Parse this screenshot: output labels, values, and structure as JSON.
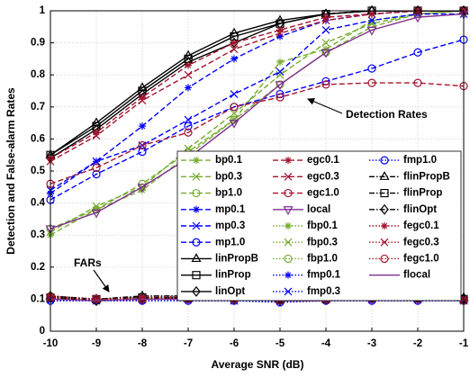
{
  "chart_data": {
    "type": "line",
    "xlabel": "Average SNR (dB)",
    "ylabel": "Detection and False-alarm Rates",
    "x": [
      -10,
      -9,
      -8,
      -7,
      -6,
      -5,
      -4,
      -3,
      -2,
      -1
    ],
    "xlim": [
      -10,
      -1
    ],
    "xticks": [
      -10,
      -9,
      -8,
      -7,
      -6,
      -5,
      -4,
      -3,
      -2,
      -1
    ],
    "ylim": [
      0,
      1
    ],
    "yticks": [
      0,
      0.1,
      0.2,
      0.3,
      0.4,
      0.5,
      0.6,
      0.7,
      0.8,
      0.9,
      1
    ],
    "grid": true,
    "legend": "lower-right",
    "annotations": [
      {
        "text": "Detection Rates"
      },
      {
        "text": "FARs"
      }
    ],
    "series": [
      {
        "name": "bp0.1",
        "color": "#77ac30",
        "dash": "dashed",
        "marker": "asterisk",
        "values": [
          0.3,
          0.38,
          0.44,
          0.55,
          0.66,
          0.84,
          0.88,
          0.97,
          0.99,
          1.0
        ]
      },
      {
        "name": "bp0.3",
        "color": "#77ac30",
        "dash": "dashed",
        "marker": "x",
        "values": [
          0.31,
          0.39,
          0.45,
          0.57,
          0.68,
          0.8,
          0.9,
          0.96,
          0.99,
          1.0
        ]
      },
      {
        "name": "bp1.0",
        "color": "#77ac30",
        "dash": "dashed",
        "marker": "circle",
        "values": [
          0.32,
          0.38,
          0.46,
          0.56,
          0.66,
          0.77,
          0.87,
          0.95,
          0.99,
          1.0
        ]
      },
      {
        "name": "mp0.1",
        "color": "#0000ff",
        "dash": "dashed",
        "marker": "asterisk",
        "values": [
          0.43,
          0.53,
          0.64,
          0.76,
          0.85,
          0.92,
          0.97,
          0.99,
          1.0,
          1.0
        ]
      },
      {
        "name": "mp0.3",
        "color": "#0000ff",
        "dash": "dashed",
        "marker": "x",
        "values": [
          0.44,
          0.53,
          0.58,
          0.66,
          0.74,
          0.81,
          0.94,
          0.97,
          0.99,
          0.99
        ]
      },
      {
        "name": "mp1.0",
        "color": "#0000ff",
        "dash": "dashed",
        "marker": "circle",
        "values": [
          0.41,
          0.49,
          0.56,
          0.64,
          0.7,
          0.74,
          0.78,
          0.82,
          0.87,
          0.91
        ]
      },
      {
        "name": "linPropB",
        "color": "#000000",
        "dash": "solid",
        "marker": "triangle",
        "values": [
          0.55,
          0.65,
          0.76,
          0.86,
          0.93,
          0.97,
          0.99,
          1.0,
          1.0,
          1.0
        ]
      },
      {
        "name": "linProp",
        "color": "#000000",
        "dash": "solid",
        "marker": "square",
        "values": [
          0.55,
          0.64,
          0.75,
          0.85,
          0.92,
          0.96,
          0.99,
          1.0,
          1.0,
          1.0
        ]
      },
      {
        "name": "linOpt",
        "color": "#000000",
        "dash": "solid",
        "marker": "diamond",
        "values": [
          0.54,
          0.63,
          0.74,
          0.84,
          0.9,
          0.96,
          0.99,
          1.0,
          1.0,
          1.0
        ]
      },
      {
        "name": "egc0.1",
        "color": "#a2142f",
        "dash": "dashed",
        "marker": "asterisk",
        "values": [
          0.54,
          0.62,
          0.73,
          0.83,
          0.9,
          0.94,
          0.98,
          0.99,
          1.0,
          1.0
        ]
      },
      {
        "name": "egc0.3",
        "color": "#a2142f",
        "dash": "dashed",
        "marker": "x",
        "values": [
          0.53,
          0.61,
          0.72,
          0.8,
          0.88,
          0.93,
          0.97,
          0.99,
          1.0,
          1.0
        ]
      },
      {
        "name": "egc1.0",
        "color": "#a2142f",
        "dash": "dashed",
        "marker": "circle",
        "values": [
          0.46,
          0.51,
          0.58,
          0.62,
          0.7,
          0.73,
          0.77,
          0.775,
          0.775,
          0.765
        ]
      },
      {
        "name": "local",
        "color": "#7e2f8e",
        "dash": "solid",
        "marker": "triangle-down",
        "values": [
          0.32,
          0.37,
          0.45,
          0.54,
          0.65,
          0.77,
          0.87,
          0.94,
          0.98,
          0.99
        ]
      },
      {
        "name": "fbp0.1",
        "color": "#77ac30",
        "dash": "dotted",
        "marker": "asterisk",
        "values": [
          0.11,
          0.1,
          0.105,
          0.11,
          0.105,
          0.1,
          0.1,
          0.105,
          0.11,
          0.1
        ]
      },
      {
        "name": "fbp0.3",
        "color": "#77ac30",
        "dash": "dotted",
        "marker": "x",
        "values": [
          0.105,
          0.1,
          0.1,
          0.105,
          0.1,
          0.095,
          0.1,
          0.105,
          0.105,
          0.1
        ]
      },
      {
        "name": "fbp1.0",
        "color": "#77ac30",
        "dash": "dotted",
        "marker": "circle",
        "values": [
          0.11,
          0.1,
          0.105,
          0.105,
          0.1,
          0.1,
          0.1,
          0.105,
          0.105,
          0.1
        ]
      },
      {
        "name": "fmp0.1",
        "color": "#0000ff",
        "dash": "dotted",
        "marker": "asterisk",
        "values": [
          0.095,
          0.095,
          0.095,
          0.095,
          0.095,
          0.095,
          0.095,
          0.095,
          0.095,
          0.095
        ]
      },
      {
        "name": "fmp0.3",
        "color": "#0000ff",
        "dash": "dotted",
        "marker": "x",
        "values": [
          0.1,
          0.095,
          0.1,
          0.1,
          0.095,
          0.095,
          0.1,
          0.1,
          0.1,
          0.095
        ]
      },
      {
        "name": "fmp1.0",
        "color": "#0000ff",
        "dash": "dotted",
        "marker": "circle",
        "values": [
          0.095,
          0.095,
          0.095,
          0.095,
          0.095,
          0.09,
          0.095,
          0.095,
          0.095,
          0.095
        ]
      },
      {
        "name": "flinPropB",
        "color": "#000000",
        "dash": "dashdot",
        "marker": "triangle",
        "values": [
          0.11,
          0.1,
          0.11,
          0.11,
          0.11,
          0.1,
          0.105,
          0.11,
          0.11,
          0.105
        ]
      },
      {
        "name": "flinProp",
        "color": "#000000",
        "dash": "dashdot",
        "marker": "square",
        "values": [
          0.105,
          0.1,
          0.105,
          0.105,
          0.105,
          0.1,
          0.1,
          0.11,
          0.105,
          0.1
        ]
      },
      {
        "name": "flinOpt",
        "color": "#000000",
        "dash": "dashdot",
        "marker": "diamond",
        "values": [
          0.105,
          0.095,
          0.1,
          0.105,
          0.1,
          0.095,
          0.1,
          0.105,
          0.105,
          0.1
        ]
      },
      {
        "name": "fegc0.1",
        "color": "#a2142f",
        "dash": "dotted",
        "marker": "asterisk",
        "values": [
          0.11,
          0.1,
          0.105,
          0.11,
          0.105,
          0.1,
          0.105,
          0.11,
          0.11,
          0.1
        ]
      },
      {
        "name": "fegc0.3",
        "color": "#a2142f",
        "dash": "dotted",
        "marker": "x",
        "values": [
          0.105,
          0.1,
          0.1,
          0.105,
          0.1,
          0.1,
          0.1,
          0.105,
          0.105,
          0.1
        ]
      },
      {
        "name": "fegc1.0",
        "color": "#a2142f",
        "dash": "dotted",
        "marker": "circle",
        "values": [
          0.105,
          0.1,
          0.1,
          0.1,
          0.1,
          0.095,
          0.1,
          0.1,
          0.1,
          0.095
        ]
      },
      {
        "name": "flocal",
        "color": "#7e2f8e",
        "dash": "solid",
        "marker": "none",
        "values": [
          0.1,
          0.095,
          0.1,
          0.1,
          0.1,
          0.095,
          0.095,
          0.1,
          0.1,
          0.095
        ]
      }
    ]
  }
}
